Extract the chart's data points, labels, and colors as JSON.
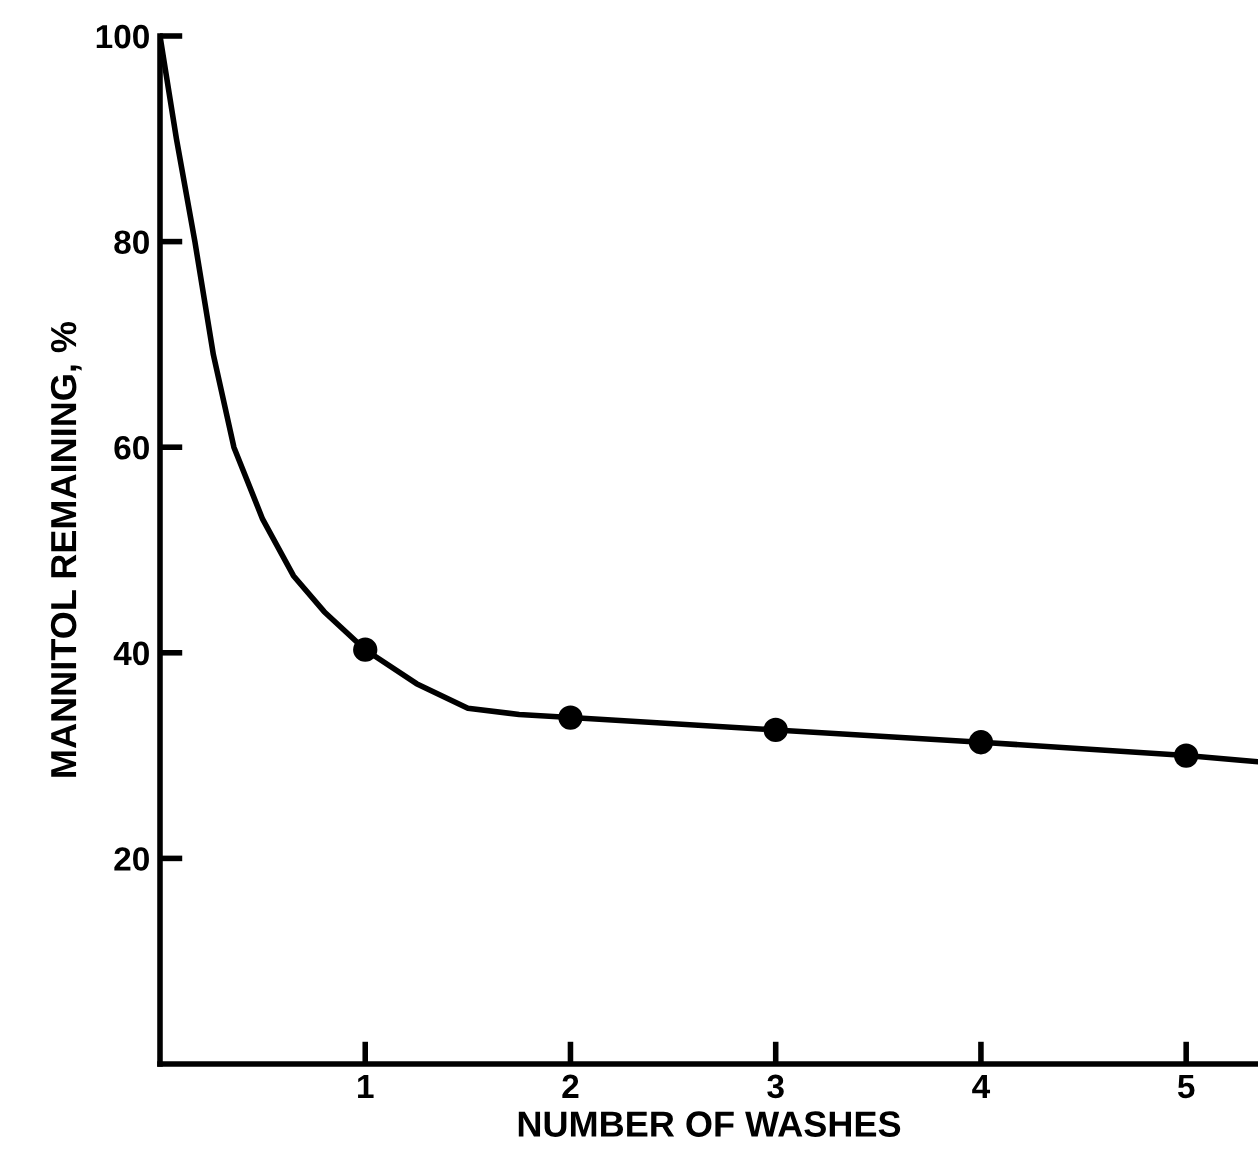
{
  "chart_data": {
    "type": "line",
    "xlabel": "NUMBER OF WASHES",
    "ylabel": "MANNITOL REMAINING, %",
    "xlim": [
      0,
      5.35
    ],
    "ylim": [
      0,
      100
    ],
    "xticks": [
      1,
      2,
      3,
      4,
      5
    ],
    "yticks": [
      20,
      40,
      60,
      80,
      100
    ],
    "grid": false,
    "legend": false,
    "series": [
      {
        "color": "#000000",
        "marker": "none",
        "x": [
          0,
          0.08,
          0.17,
          0.26,
          0.36,
          0.5,
          0.65,
          0.8,
          1,
          1.25,
          1.5,
          1.75,
          2,
          3,
          4,
          5,
          5.35
        ],
        "values": [
          100,
          90,
          80,
          69,
          60,
          53,
          47.5,
          44,
          40.3,
          37,
          34.6,
          34,
          33.7,
          32.5,
          31.3,
          30,
          29.4
        ]
      },
      {
        "type": "scatter",
        "color": "#000000",
        "marker": "circle",
        "x": [
          1,
          2,
          3,
          4,
          5
        ],
        "values": [
          40.3,
          33.7,
          32.5,
          31.3,
          30
        ]
      }
    ]
  }
}
